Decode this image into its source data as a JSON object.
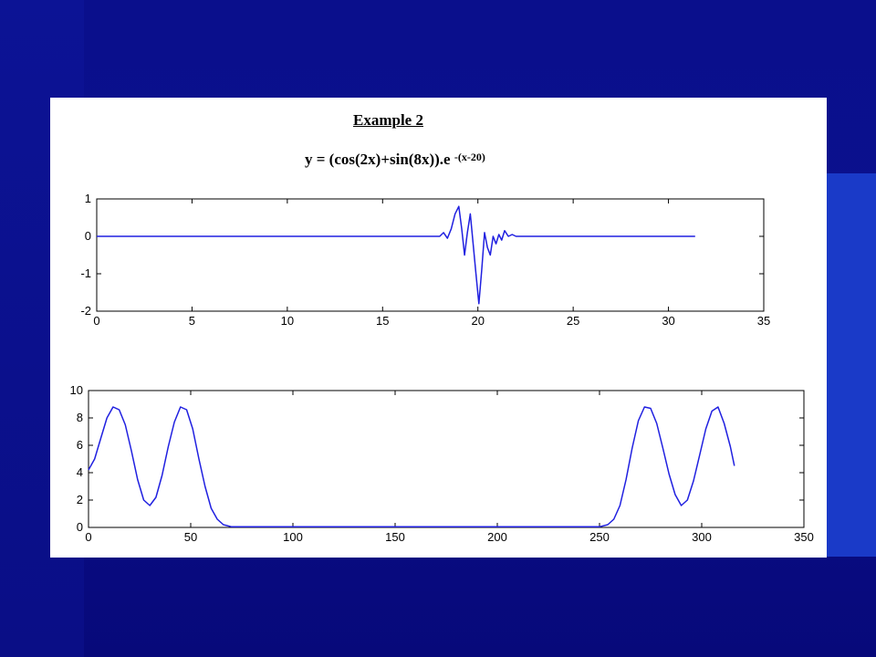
{
  "header": {
    "title": "Example 2",
    "formula_base": "y = (cos(2x)+sin(8x)).e",
    "formula_exponent": "-(x-20)"
  },
  "colors": {
    "background": "#0a0f8c",
    "panel": "#ffffff",
    "line": "#2020e0"
  },
  "chart_data": [
    {
      "type": "line",
      "title": "",
      "xlabel": "",
      "ylabel": "",
      "xlim": [
        0,
        35
      ],
      "ylim": [
        -2,
        1
      ],
      "xticks": [
        0,
        5,
        10,
        15,
        20,
        25,
        30,
        35
      ],
      "yticks": [
        -2,
        -1,
        0,
        1
      ],
      "grid": false,
      "series": [
        {
          "x": [
            0,
            17.5,
            18.0,
            18.2,
            18.4,
            18.6,
            18.8,
            19.0,
            19.15,
            19.3,
            19.45,
            19.6,
            19.75,
            19.9,
            20.05,
            20.2,
            20.35,
            20.5,
            20.65,
            20.8,
            20.95,
            21.1,
            21.25,
            21.4,
            21.6,
            21.8,
            22.0,
            22.5,
            31.4
          ],
          "y": [
            0,
            0,
            0.0,
            0.1,
            -0.05,
            0.2,
            0.6,
            0.8,
            0.2,
            -0.5,
            0.1,
            0.6,
            -0.2,
            -1.0,
            -1.8,
            -0.9,
            0.1,
            -0.3,
            -0.5,
            0.0,
            -0.2,
            0.05,
            -0.1,
            0.15,
            0.0,
            0.05,
            0.0,
            0.0,
            0.0
          ]
        }
      ]
    },
    {
      "type": "line",
      "title": "",
      "xlabel": "",
      "ylabel": "",
      "xlim": [
        0,
        350
      ],
      "ylim": [
        0,
        10
      ],
      "xticks": [
        0,
        50,
        100,
        150,
        200,
        250,
        300,
        350
      ],
      "yticks": [
        0,
        2,
        4,
        6,
        8,
        10
      ],
      "grid": false,
      "series": [
        {
          "x": [
            0,
            3,
            6,
            9,
            12,
            15,
            18,
            21,
            24,
            27,
            30,
            33,
            36,
            39,
            42,
            45,
            48,
            51,
            54,
            57,
            60,
            63,
            66,
            70,
            250,
            254,
            257,
            260,
            263,
            266,
            269,
            272,
            275,
            278,
            281,
            284,
            287,
            290,
            293,
            296,
            299,
            302,
            305,
            308,
            311,
            314,
            316
          ],
          "y": [
            4.2,
            5.0,
            6.5,
            8.0,
            8.8,
            8.6,
            7.5,
            5.6,
            3.5,
            2.0,
            1.6,
            2.2,
            3.8,
            5.9,
            7.7,
            8.8,
            8.6,
            7.2,
            5.0,
            3.0,
            1.4,
            0.6,
            0.2,
            0.05,
            0.05,
            0.2,
            0.6,
            1.6,
            3.5,
            5.8,
            7.8,
            8.8,
            8.7,
            7.6,
            5.8,
            3.9,
            2.4,
            1.6,
            2.0,
            3.4,
            5.3,
            7.2,
            8.5,
            8.8,
            7.6,
            5.9,
            4.5
          ]
        }
      ]
    }
  ]
}
